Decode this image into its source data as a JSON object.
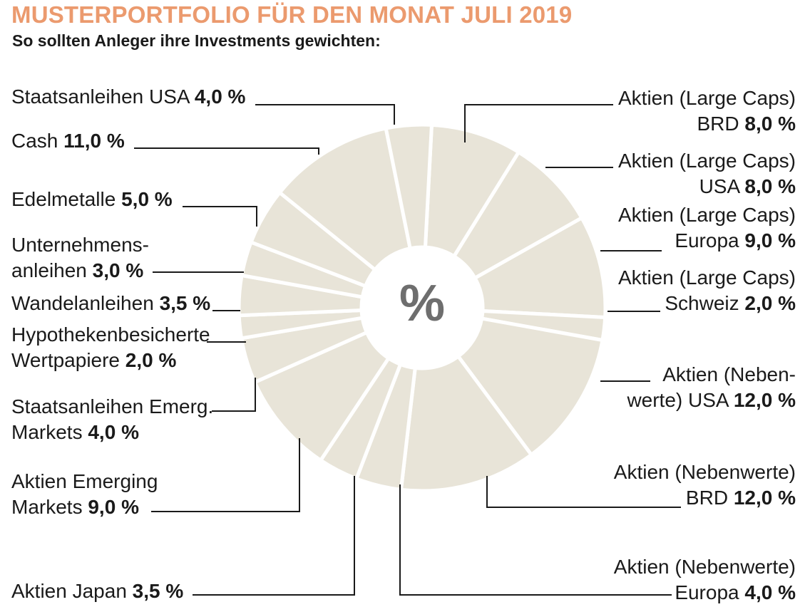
{
  "title": "MUSTERPORTFOLIO FÜR DEN MONAT JULI 2019",
  "subtitle": "So sollten Anleger ihre Investments gewichten:",
  "colors": {
    "title": "#eb9a6e",
    "slice": "#e8e4d8",
    "separator": "#ffffff",
    "center_text": "#6e6e6e",
    "leader": "#1a1a1a"
  },
  "chart_data": {
    "type": "pie",
    "variant": "donut",
    "title": "MUSTERPORTFOLIO FÜR DEN MONAT JULI 2019",
    "subtitle": "So sollten Anleger ihre Investments gewichten:",
    "center_label": "%",
    "unit": "%",
    "slices": [
      {
        "name": "Aktien (Large Caps) BRD",
        "lines": [
          "Aktien (Large Caps)",
          "BRD"
        ],
        "value": 8.0,
        "value_label": "8,0 %"
      },
      {
        "name": "Aktien (Large Caps) USA",
        "lines": [
          "Aktien (Large Caps)",
          "USA"
        ],
        "value": 8.0,
        "value_label": "8,0 %"
      },
      {
        "name": "Aktien (Large Caps) Europa",
        "lines": [
          "Aktien (Large Caps)",
          "Europa"
        ],
        "value": 9.0,
        "value_label": "9,0  %"
      },
      {
        "name": "Aktien (Large Caps) Schweiz",
        "lines": [
          "Aktien (Large Caps)",
          "Schweiz"
        ],
        "value": 2.0,
        "value_label": "2,0 %"
      },
      {
        "name": "Aktien (Nebenwerte) USA",
        "lines": [
          "Aktien (Neben-",
          "werte) USA"
        ],
        "value": 12.0,
        "value_label": "12,0 %"
      },
      {
        "name": "Aktien (Nebenwerte) BRD",
        "lines": [
          "Aktien (Nebenwerte)",
          "BRD"
        ],
        "value": 12.0,
        "value_label": "12,0 %"
      },
      {
        "name": "Aktien (Nebenwerte) Europa",
        "lines": [
          "Aktien (Nebenwerte)",
          "Europa"
        ],
        "value": 4.0,
        "value_label": "4,0 %"
      },
      {
        "name": "Aktien Japan",
        "lines": [
          "Aktien Japan"
        ],
        "value": 3.5,
        "value_label": "3,5 %"
      },
      {
        "name": "Aktien Emerging Markets",
        "lines": [
          "Aktien Emerging",
          "Markets"
        ],
        "value": 9.0,
        "value_label": "9,0 %"
      },
      {
        "name": "Staatsanleihen Emerg. Markets",
        "lines": [
          "Staatsanleihen Emerg.",
          "Markets"
        ],
        "value": 4.0,
        "value_label": "4,0 %"
      },
      {
        "name": "Hypothekenbesicherte Wertpapiere",
        "lines": [
          "Hypothekenbesicherte",
          "Wertpapiere"
        ],
        "value": 2.0,
        "value_label": "2,0 %"
      },
      {
        "name": "Wandelanleihen",
        "lines": [
          "Wandelanleihen"
        ],
        "value": 3.5,
        "value_label": "3,5 %"
      },
      {
        "name": "Unternehmensanleihen",
        "lines": [
          "Unternehmens-",
          "anleihen"
        ],
        "value": 3.0,
        "value_label": "3,0 %"
      },
      {
        "name": "Edelmetalle",
        "lines": [
          "Edelmetalle"
        ],
        "value": 5.0,
        "value_label": "5,0 %"
      },
      {
        "name": "Cash",
        "lines": [
          "Cash"
        ],
        "value": 11.0,
        "value_label": "11,0 %"
      },
      {
        "name": "Staatsanleihen USA",
        "lines": [
          "Staatsanleihen USA"
        ],
        "value": 4.0,
        "value_label": "4,0 %"
      }
    ]
  }
}
